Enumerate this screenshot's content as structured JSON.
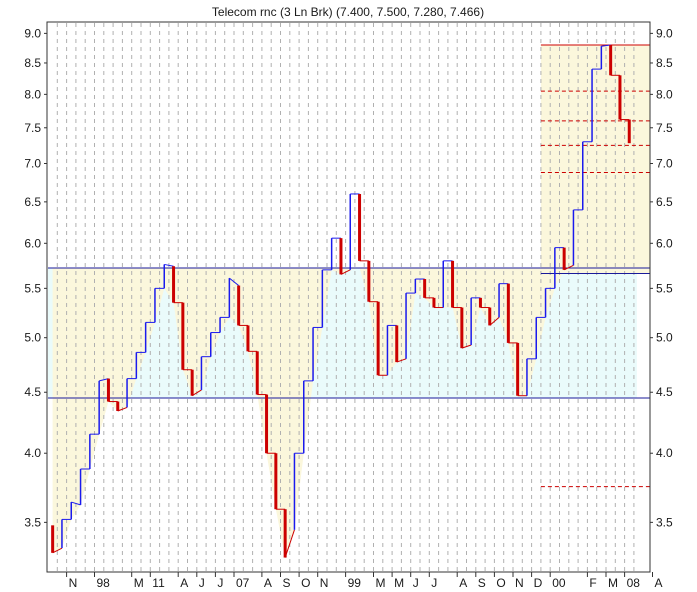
{
  "chart_data": {
    "type": "line",
    "title": "Telecom rnc (3 Ln Brk)  (7.400, 7.500, 7.280, 7.466)",
    "y_scale": "log",
    "ylim": [
      3.18,
      9.2
    ],
    "y_ticks": [
      3.5,
      4.0,
      4.5,
      5.0,
      5.5,
      6.0,
      6.5,
      7.0,
      7.5,
      8.0,
      8.5,
      9.0
    ],
    "x_ticks": [
      "N",
      "98",
      "M",
      "11",
      "A",
      "J",
      "J",
      "07",
      "A",
      "S",
      "O",
      "N",
      "99",
      "M",
      "M",
      "J",
      "J",
      "A",
      "S",
      "O",
      "N",
      "D",
      "00",
      "F",
      "M",
      "08",
      "A"
    ],
    "x_ticks_index": [
      2,
      5,
      9,
      11,
      14,
      16,
      18,
      20,
      23,
      25,
      27,
      29,
      32,
      35,
      37,
      39,
      41,
      44,
      46,
      48,
      50,
      52,
      54,
      58,
      60,
      62,
      65
    ],
    "bricks": [
      {
        "open": 3.48,
        "close": 3.3,
        "dir": "down"
      },
      {
        "open": 3.33,
        "close": 3.52,
        "dir": "up"
      },
      {
        "open": 3.52,
        "close": 3.64,
        "dir": "up"
      },
      {
        "open": 3.62,
        "close": 3.88,
        "dir": "up"
      },
      {
        "open": 3.88,
        "close": 4.15,
        "dir": "up"
      },
      {
        "open": 4.15,
        "close": 4.6,
        "dir": "up"
      },
      {
        "open": 4.62,
        "close": 4.42,
        "dir": "down"
      },
      {
        "open": 4.42,
        "close": 4.34,
        "dir": "down"
      },
      {
        "open": 4.37,
        "close": 4.62,
        "dir": "up"
      },
      {
        "open": 4.62,
        "close": 4.86,
        "dir": "up"
      },
      {
        "open": 4.86,
        "close": 5.15,
        "dir": "up"
      },
      {
        "open": 5.15,
        "close": 5.5,
        "dir": "up"
      },
      {
        "open": 5.5,
        "close": 5.76,
        "dir": "up"
      },
      {
        "open": 5.74,
        "close": 5.35,
        "dir": "down"
      },
      {
        "open": 5.35,
        "close": 4.7,
        "dir": "down"
      },
      {
        "open": 4.7,
        "close": 4.47,
        "dir": "down"
      },
      {
        "open": 4.52,
        "close": 4.82,
        "dir": "up"
      },
      {
        "open": 4.82,
        "close": 5.05,
        "dir": "up"
      },
      {
        "open": 5.05,
        "close": 5.2,
        "dir": "up"
      },
      {
        "open": 5.2,
        "close": 5.61,
        "dir": "up"
      },
      {
        "open": 5.53,
        "close": 5.12,
        "dir": "down"
      },
      {
        "open": 5.12,
        "close": 4.87,
        "dir": "down"
      },
      {
        "open": 4.87,
        "close": 4.48,
        "dir": "down"
      },
      {
        "open": 4.48,
        "close": 4.0,
        "dir": "down"
      },
      {
        "open": 4.0,
        "close": 3.59,
        "dir": "down"
      },
      {
        "open": 3.59,
        "close": 3.27,
        "dir": "down"
      },
      {
        "open": 3.45,
        "close": 4.0,
        "dir": "up"
      },
      {
        "open": 4.0,
        "close": 4.6,
        "dir": "up"
      },
      {
        "open": 4.6,
        "close": 5.1,
        "dir": "up"
      },
      {
        "open": 5.1,
        "close": 5.7,
        "dir": "up"
      },
      {
        "open": 5.7,
        "close": 6.06,
        "dir": "up"
      },
      {
        "open": 6.06,
        "close": 5.65,
        "dir": "down"
      },
      {
        "open": 5.7,
        "close": 6.6,
        "dir": "up"
      },
      {
        "open": 6.6,
        "close": 5.8,
        "dir": "down"
      },
      {
        "open": 5.8,
        "close": 5.36,
        "dir": "down"
      },
      {
        "open": 5.36,
        "close": 4.65,
        "dir": "down"
      },
      {
        "open": 4.65,
        "close": 5.12,
        "dir": "up"
      },
      {
        "open": 5.12,
        "close": 4.77,
        "dir": "down"
      },
      {
        "open": 4.8,
        "close": 5.45,
        "dir": "up"
      },
      {
        "open": 5.45,
        "close": 5.6,
        "dir": "up"
      },
      {
        "open": 5.6,
        "close": 5.4,
        "dir": "down"
      },
      {
        "open": 5.4,
        "close": 5.3,
        "dir": "down"
      },
      {
        "open": 5.3,
        "close": 5.8,
        "dir": "up"
      },
      {
        "open": 5.8,
        "close": 5.3,
        "dir": "down"
      },
      {
        "open": 5.3,
        "close": 4.9,
        "dir": "down"
      },
      {
        "open": 4.93,
        "close": 5.4,
        "dir": "up"
      },
      {
        "open": 5.4,
        "close": 5.3,
        "dir": "down"
      },
      {
        "open": 5.3,
        "close": 5.12,
        "dir": "down"
      },
      {
        "open": 5.2,
        "close": 5.55,
        "dir": "up"
      },
      {
        "open": 5.55,
        "close": 4.95,
        "dir": "down"
      },
      {
        "open": 4.95,
        "close": 4.47,
        "dir": "down"
      },
      {
        "open": 4.47,
        "close": 4.8,
        "dir": "up"
      },
      {
        "open": 4.8,
        "close": 5.2,
        "dir": "up"
      },
      {
        "open": 5.2,
        "close": 5.5,
        "dir": "up"
      },
      {
        "open": 5.5,
        "close": 5.95,
        "dir": "up"
      },
      {
        "open": 5.95,
        "close": 5.7,
        "dir": "down"
      },
      {
        "open": 5.75,
        "close": 6.4,
        "dir": "up"
      },
      {
        "open": 6.4,
        "close": 7.3,
        "dir": "up"
      },
      {
        "open": 7.3,
        "close": 8.4,
        "dir": "up"
      },
      {
        "open": 8.4,
        "close": 8.78,
        "dir": "up"
      },
      {
        "open": 8.8,
        "close": 8.3,
        "dir": "down"
      },
      {
        "open": 8.3,
        "close": 7.62,
        "dir": "down"
      },
      {
        "open": 7.62,
        "close": 7.28,
        "dir": "down"
      }
    ],
    "reference_lines": [
      {
        "value": 5.72,
        "color": "#1a1a9a",
        "style": "solid"
      },
      {
        "value": 4.45,
        "color": "#1a1a9a",
        "style": "solid"
      },
      {
        "value": 5.66,
        "color": "#1a1a9a",
        "style": "solid"
      },
      {
        "value": 8.8,
        "color": "#cc0000",
        "style": "solid"
      },
      {
        "value": 8.05,
        "color": "#cc0000",
        "style": "dashed"
      },
      {
        "value": 7.6,
        "color": "#cc0000",
        "style": "dashed"
      },
      {
        "value": 7.25,
        "color": "#cc0000",
        "style": "dashed"
      },
      {
        "value": 6.88,
        "color": "#cc0000",
        "style": "dashed"
      },
      {
        "value": 3.75,
        "color": "#cc0000",
        "style": "dashed"
      }
    ],
    "colors": {
      "up": "#1a1aee",
      "down": "#cc0000",
      "band_fill": "#fbf7dc",
      "lower_fill": "#eafbfb",
      "grid": "#b0b0b0",
      "frame": "#333333"
    },
    "grid": true
  }
}
